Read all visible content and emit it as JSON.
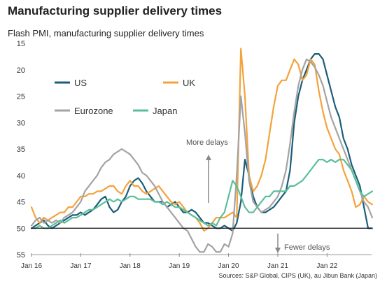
{
  "header": {
    "title": "Manufacturing supplier delivery times",
    "subtitle": "Flash PMI, manufacturing supplier delivery times"
  },
  "source": "Sources: S&P Global, CIPS (UK), au Jibun Bank (Japan)",
  "chart_data": {
    "type": "line",
    "title": "Manufacturing supplier delivery times",
    "subtitle": "Flash PMI, manufacturing supplier delivery times",
    "xlabel": "",
    "ylabel": "",
    "y_inverted": true,
    "ylim": [
      55,
      15
    ],
    "yticks": [
      15,
      20,
      25,
      30,
      35,
      40,
      45,
      50,
      55
    ],
    "xticks": [
      "Jan 16",
      "Jan 17",
      "Jan 18",
      "Jan 19",
      "Jan 20",
      "Jan 21",
      "Jan 22"
    ],
    "x_start": "2016-01",
    "x_end": "2022-11",
    "grid": false,
    "legend": "top-left",
    "reference_line": 50,
    "annotations": [
      {
        "text": "More delays",
        "x": "2019-06",
        "y": 35
      },
      {
        "text": "Fewer delays",
        "x": "2020-03",
        "y": 52
      }
    ],
    "series": [
      {
        "name": "US",
        "color": "#1b5e7a",
        "values": [
          50,
          49.5,
          49,
          48.5,
          49.5,
          50,
          49.5,
          49,
          48.5,
          48,
          47.5,
          47.5,
          47,
          47.5,
          47,
          46.5,
          45.5,
          44.5,
          44,
          46,
          47,
          46.5,
          45,
          44,
          42,
          41,
          40.5,
          41.5,
          43,
          44,
          45,
          45,
          45,
          46,
          45.5,
          45,
          46,
          47,
          47,
          46.5,
          47,
          48,
          49,
          49,
          49.5,
          50,
          50,
          49.5,
          50,
          50.5,
          49,
          45,
          37,
          40,
          44,
          46,
          47,
          47,
          46.5,
          46,
          45,
          44,
          43,
          39,
          30,
          25,
          22,
          20,
          18,
          17,
          17,
          18,
          21,
          24,
          27,
          29,
          33,
          35,
          38,
          40,
          42,
          46,
          50,
          50
        ]
      },
      {
        "name": "UK",
        "color": "#f3a33c",
        "values": [
          46,
          48,
          49,
          48,
          48.5,
          48,
          47.5,
          47,
          47,
          46,
          46,
          45,
          44,
          44,
          43.5,
          43.5,
          43,
          43,
          42.5,
          42,
          42,
          43,
          43.5,
          42,
          41,
          42,
          42,
          43,
          43.5,
          43,
          42.5,
          42,
          43,
          44,
          45,
          45.5,
          45,
          46,
          47,
          47.5,
          48,
          49,
          50.5,
          50,
          49,
          48,
          48,
          48,
          47.5,
          47,
          48,
          16,
          25,
          40,
          43,
          42,
          40,
          37,
          32,
          27,
          23,
          22,
          22,
          20,
          18,
          19,
          22,
          21,
          18,
          19,
          24,
          28,
          31,
          33,
          35,
          36,
          39,
          41,
          43,
          46,
          45.5,
          44,
          45,
          45.5
        ]
      },
      {
        "name": "Eurozone",
        "color": "#a3a3a3",
        "values": [
          49.5,
          48.5,
          48,
          49,
          48.5,
          49,
          48.5,
          49,
          48,
          47.5,
          47,
          46,
          45,
          43,
          42,
          41,
          40,
          38.5,
          37.5,
          37,
          36,
          35.5,
          35,
          35.5,
          36,
          37,
          38,
          39.5,
          40,
          41,
          42,
          43.5,
          45,
          46,
          47,
          48,
          49,
          50,
          50.5,
          52,
          53.5,
          54.5,
          54.5,
          53,
          53.5,
          54.5,
          54.5,
          53,
          53.5,
          51,
          40,
          25,
          32,
          41,
          45,
          46,
          47,
          46.5,
          46,
          45,
          44,
          42,
          39,
          34,
          28,
          23,
          20,
          18,
          18.5,
          19.5,
          21,
          23,
          26,
          29,
          31,
          33,
          35,
          37,
          39,
          41,
          43,
          45,
          46,
          48
        ]
      },
      {
        "name": "Japan",
        "color": "#5cbf99",
        "values": [
          50,
          50,
          49.5,
          50,
          50,
          49.5,
          49,
          48.5,
          49,
          48.5,
          48,
          48,
          47.5,
          47,
          46.5,
          46.5,
          46,
          45.5,
          45,
          44.5,
          45,
          44.5,
          45,
          44.5,
          44,
          44,
          44.5,
          44.5,
          44.5,
          44.5,
          45,
          45,
          45.5,
          45,
          45.5,
          46,
          46,
          46.5,
          47,
          47.5,
          48,
          48.5,
          49,
          49.5,
          49,
          49.5,
          48,
          47,
          44,
          41,
          42,
          44,
          46,
          47,
          47,
          46,
          45,
          44,
          44,
          43,
          43,
          43,
          43,
          42,
          42,
          41.5,
          41,
          40,
          39,
          38,
          37,
          37,
          37.5,
          37,
          37.5,
          37,
          37,
          38,
          39,
          41,
          43,
          44,
          43.5,
          43
        ]
      }
    ]
  }
}
